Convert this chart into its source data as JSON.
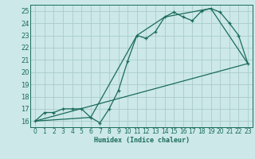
{
  "bg_color": "#cce8e8",
  "grid_color": "#aacccc",
  "line_color": "#1a6b5a",
  "xlabel": "Humidex (Indice chaleur)",
  "xlim": [
    -0.5,
    23.5
  ],
  "ylim": [
    15.5,
    25.5
  ],
  "yticks": [
    16,
    17,
    18,
    19,
    20,
    21,
    22,
    23,
    24,
    25
  ],
  "xticks": [
    0,
    1,
    2,
    3,
    4,
    5,
    6,
    7,
    8,
    9,
    10,
    11,
    12,
    13,
    14,
    15,
    16,
    17,
    18,
    19,
    20,
    21,
    22,
    23
  ],
  "line1_x": [
    0,
    1,
    2,
    3,
    4,
    5,
    6,
    7,
    8,
    9,
    10,
    11,
    12,
    13,
    14,
    15,
    16,
    17,
    18,
    19,
    20,
    21,
    22,
    23
  ],
  "line1_y": [
    16.0,
    16.7,
    16.7,
    17.0,
    17.0,
    17.0,
    16.3,
    15.85,
    17.0,
    18.5,
    20.9,
    23.0,
    22.75,
    23.3,
    24.5,
    24.9,
    24.5,
    24.2,
    25.0,
    25.2,
    24.9,
    24.0,
    23.0,
    20.7
  ],
  "line2_x": [
    0,
    23
  ],
  "line2_y": [
    16.0,
    20.7
  ],
  "line3_x": [
    0,
    6,
    11,
    14,
    19,
    23
  ],
  "line3_y": [
    16.0,
    16.3,
    23.0,
    24.5,
    25.2,
    20.7
  ],
  "xlabel_fontsize": 6,
  "tick_fontsize": 5.5,
  "ytick_fontsize": 6
}
